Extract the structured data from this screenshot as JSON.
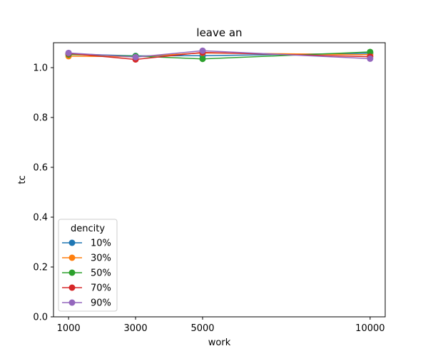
{
  "chart_data": {
    "type": "line",
    "title": "leave an",
    "xlabel": "work",
    "ylabel": "tc",
    "x": [
      1000,
      3000,
      5000,
      10000
    ],
    "xticks": [
      "1000",
      "3000",
      "5000",
      "10000"
    ],
    "yticks": [
      "0.0",
      "0.2",
      "0.4",
      "0.6",
      "0.8",
      "1.0"
    ],
    "ylim": [
      0,
      1.1
    ],
    "legend_title": "dencity",
    "legend_position": "lower-left",
    "grid": false,
    "series": [
      {
        "name": "10%",
        "color": "#1f77b4",
        "values": [
          1.055,
          1.047,
          1.048,
          1.058
        ]
      },
      {
        "name": "30%",
        "color": "#ff7f0e",
        "values": [
          1.046,
          1.044,
          1.059,
          1.052
        ]
      },
      {
        "name": "50%",
        "color": "#2ca02c",
        "values": [
          1.053,
          1.046,
          1.035,
          1.063
        ]
      },
      {
        "name": "70%",
        "color": "#d62728",
        "values": [
          1.057,
          1.033,
          1.061,
          1.044
        ]
      },
      {
        "name": "90%",
        "color": "#9467bd",
        "values": [
          1.059,
          1.042,
          1.068,
          1.036
        ]
      }
    ]
  }
}
